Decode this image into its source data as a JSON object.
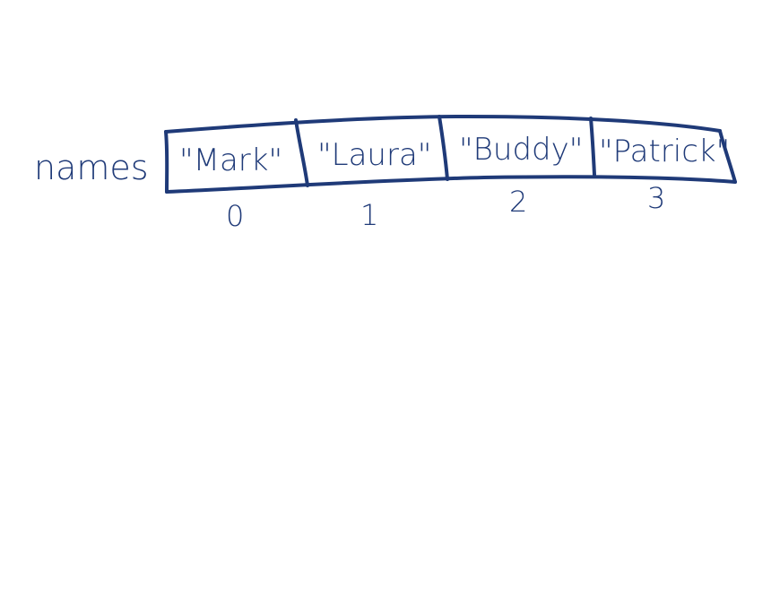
{
  "variable_name": "names",
  "cells": [
    {
      "value": "\"Mark\"",
      "index": "0"
    },
    {
      "value": "\"Laura\"",
      "index": "1"
    },
    {
      "value": "\"Buddy\"",
      "index": "2"
    },
    {
      "value": "\"Patrick\"",
      "index": "3"
    }
  ],
  "ink_color": "#1f3a78"
}
